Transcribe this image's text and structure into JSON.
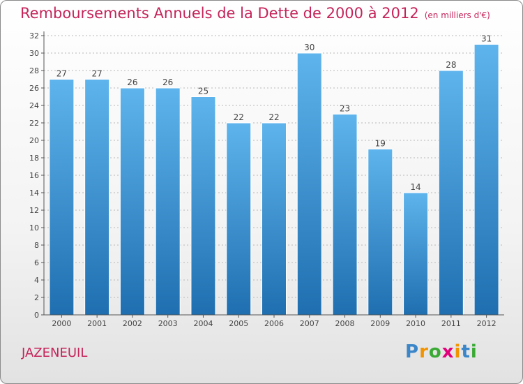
{
  "chart_data": {
    "type": "bar",
    "title": "Remboursements Annuels de la Dette de 2000 à 2012",
    "subtitle": "(en milliers d'€)",
    "categories": [
      "2000",
      "2001",
      "2002",
      "2003",
      "2004",
      "2005",
      "2006",
      "2007",
      "2008",
      "2009",
      "2010",
      "2011",
      "2012"
    ],
    "values": [
      27,
      27,
      26,
      26,
      25,
      22,
      22,
      30,
      23,
      19,
      14,
      28,
      31
    ],
    "ylim": [
      0,
      32
    ],
    "yticks": [
      0,
      2,
      4,
      6,
      8,
      10,
      12,
      14,
      16,
      18,
      20,
      22,
      24,
      26,
      28,
      30,
      32
    ],
    "grid": true,
    "xlabel": "",
    "ylabel": ""
  },
  "commune": "JAZENEUIL",
  "logo": {
    "text": "Proxiti",
    "letters": [
      "P",
      "r",
      "o",
      "x",
      "i",
      "t",
      "i"
    ],
    "colors": [
      "#3a86c8",
      "#f29400",
      "#3aaa35",
      "#e2007a",
      "#f29400",
      "#3a86c8",
      "#3aaa35"
    ]
  },
  "colors": {
    "title": "#c5245a",
    "bar_top": "#5eb4ec",
    "bar_bottom": "#1f6fb0",
    "axis": "#555555"
  }
}
